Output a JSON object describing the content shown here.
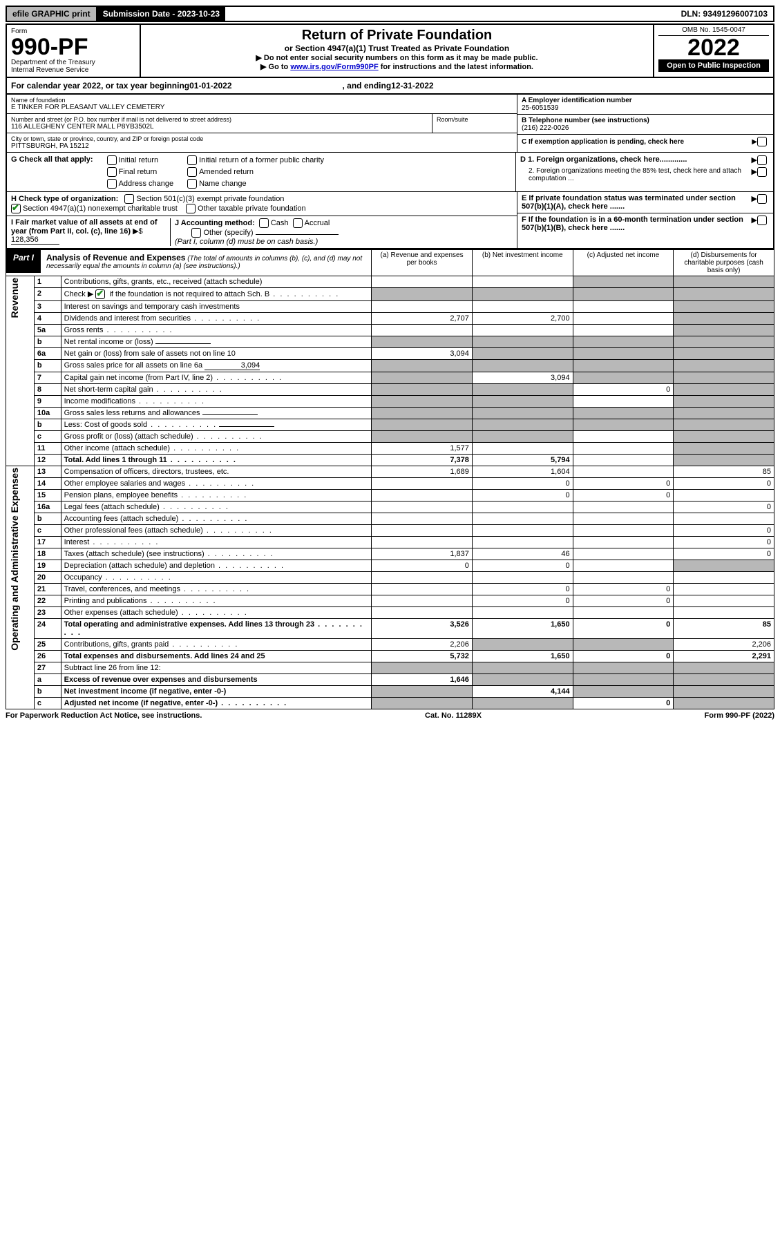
{
  "topbar": {
    "efile": "efile GRAPHIC print",
    "submission_label": "Submission Date - 2023-10-23",
    "dln": "DLN: 93491296007103"
  },
  "header": {
    "form": "Form",
    "form_number": "990-PF",
    "dept": "Department of the Treasury",
    "irs": "Internal Revenue Service",
    "title": "Return of Private Foundation",
    "subtitle": "or Section 4947(a)(1) Trust Treated as Private Foundation",
    "note1": "▶ Do not enter social security numbers on this form as it may be made public.",
    "note2_prefix": "▶ Go to ",
    "note2_link": "www.irs.gov/Form990PF",
    "note2_suffix": " for instructions and the latest information.",
    "omb": "OMB No. 1545-0047",
    "year": "2022",
    "open_public": "Open to Public Inspection"
  },
  "cal_year": {
    "prefix": "For calendar year 2022, or tax year beginning ",
    "begin": "01-01-2022",
    "mid": " , and ending ",
    "end": "12-31-2022"
  },
  "info": {
    "name_label": "Name of foundation",
    "name": "E TINKER FOR PLEASANT VALLEY CEMETERY",
    "addr_label": "Number and street (or P.O. box number if mail is not delivered to street address)",
    "addr": "116 ALLEGHENY CENTER MALL P8YB3502L",
    "room_label": "Room/suite",
    "city_label": "City or town, state or province, country, and ZIP or foreign postal code",
    "city": "PITTSBURGH, PA  15212",
    "ein_label": "A Employer identification number",
    "ein": "25-6051539",
    "phone_label": "B Telephone number (see instructions)",
    "phone": "(216) 222-0026",
    "c_label": "C If exemption application is pending, check here",
    "d1_label": "D 1. Foreign organizations, check here.............",
    "d2_label": "2. Foreign organizations meeting the 85% test, check here and attach computation ...",
    "e_label": "E If private foundation status was terminated under section 507(b)(1)(A), check here .......",
    "f_label": "F If the foundation is in a 60-month termination under section 507(b)(1)(B), check here ......."
  },
  "g": {
    "label": "G Check all that apply:",
    "opts": [
      "Initial return",
      "Initial return of a former public charity",
      "Final return",
      "Amended return",
      "Address change",
      "Name change"
    ]
  },
  "h": {
    "label": "H Check type of organization:",
    "opt1": "Section 501(c)(3) exempt private foundation",
    "opt2": "Section 4947(a)(1) nonexempt charitable trust",
    "opt3": "Other taxable private foundation"
  },
  "i": {
    "label": "I Fair market value of all assets at end of year (from Part II, col. (c), line 16)",
    "arrow": "▶$",
    "value": "128,356"
  },
  "j": {
    "label": "J Accounting method:",
    "cash": "Cash",
    "accrual": "Accrual",
    "other": "Other (specify)",
    "note": "(Part I, column (d) must be on cash basis.)"
  },
  "part1": {
    "label": "Part I",
    "title": "Analysis of Revenue and Expenses",
    "note": "(The total of amounts in columns (b), (c), and (d) may not necessarily equal the amounts in column (a) (see instructions).)",
    "col_a": "(a) Revenue and expenses per books",
    "col_b": "(b) Net investment income",
    "col_c": "(c) Adjusted net income",
    "col_d": "(d) Disbursements for charitable purposes (cash basis only)"
  },
  "sides": {
    "revenue": "Revenue",
    "expenses": "Operating and Administrative Expenses"
  },
  "rows": [
    {
      "n": "1",
      "desc": "Contributions, gifts, grants, etc., received (attach schedule)",
      "a": "",
      "b": "",
      "c": "shade",
      "d": "shade"
    },
    {
      "n": "2",
      "desc": "Check ▶ ☑ if the foundation is not required to attach Sch. B",
      "a": "shade",
      "b": "shade",
      "c": "shade",
      "d": "shade",
      "dots": true
    },
    {
      "n": "3",
      "desc": "Interest on savings and temporary cash investments",
      "a": "",
      "b": "",
      "c": "",
      "d": "shade"
    },
    {
      "n": "4",
      "desc": "Dividends and interest from securities",
      "a": "2,707",
      "b": "2,700",
      "c": "",
      "d": "shade",
      "dots": true
    },
    {
      "n": "5a",
      "desc": "Gross rents",
      "a": "",
      "b": "",
      "c": "",
      "d": "shade",
      "dots": true
    },
    {
      "n": "b",
      "desc": "Net rental income or (loss)",
      "a": "shade",
      "b": "shade",
      "c": "shade",
      "d": "shade",
      "inline": true
    },
    {
      "n": "6a",
      "desc": "Net gain or (loss) from sale of assets not on line 10",
      "a": "3,094",
      "b": "shade",
      "c": "shade",
      "d": "shade"
    },
    {
      "n": "b",
      "desc": "Gross sales price for all assets on line 6a",
      "a": "shade",
      "b": "shade",
      "c": "shade",
      "d": "shade",
      "inline": true,
      "inline_val": "3,094"
    },
    {
      "n": "7",
      "desc": "Capital gain net income (from Part IV, line 2)",
      "a": "shade",
      "b": "3,094",
      "c": "shade",
      "d": "shade",
      "dots": true
    },
    {
      "n": "8",
      "desc": "Net short-term capital gain",
      "a": "shade",
      "b": "shade",
      "c": "0",
      "d": "shade",
      "dots": true
    },
    {
      "n": "9",
      "desc": "Income modifications",
      "a": "shade",
      "b": "shade",
      "c": "",
      "d": "shade",
      "dots": true
    },
    {
      "n": "10a",
      "desc": "Gross sales less returns and allowances",
      "a": "shade",
      "b": "shade",
      "c": "shade",
      "d": "shade",
      "inline": true
    },
    {
      "n": "b",
      "desc": "Less: Cost of goods sold",
      "a": "shade",
      "b": "shade",
      "c": "shade",
      "d": "shade",
      "inline": true,
      "dots": true
    },
    {
      "n": "c",
      "desc": "Gross profit or (loss) (attach schedule)",
      "a": "shade",
      "b": "shade",
      "c": "",
      "d": "shade",
      "dots": true
    },
    {
      "n": "11",
      "desc": "Other income (attach schedule)",
      "a": "1,577",
      "b": "",
      "c": "",
      "d": "shade",
      "dots": true
    },
    {
      "n": "12",
      "desc": "Total. Add lines 1 through 11",
      "a": "7,378",
      "b": "5,794",
      "c": "",
      "d": "shade",
      "bold": true,
      "dots": true
    }
  ],
  "exp_rows": [
    {
      "n": "13",
      "desc": "Compensation of officers, directors, trustees, etc.",
      "a": "1,689",
      "b": "1,604",
      "c": "",
      "d": "85"
    },
    {
      "n": "14",
      "desc": "Other employee salaries and wages",
      "a": "",
      "b": "0",
      "c": "0",
      "d": "0",
      "dots": true
    },
    {
      "n": "15",
      "desc": "Pension plans, employee benefits",
      "a": "",
      "b": "0",
      "c": "0",
      "d": "",
      "dots": true
    },
    {
      "n": "16a",
      "desc": "Legal fees (attach schedule)",
      "a": "",
      "b": "",
      "c": "",
      "d": "0",
      "dots": true
    },
    {
      "n": "b",
      "desc": "Accounting fees (attach schedule)",
      "a": "",
      "b": "",
      "c": "",
      "d": "",
      "dots": true
    },
    {
      "n": "c",
      "desc": "Other professional fees (attach schedule)",
      "a": "",
      "b": "",
      "c": "",
      "d": "0",
      "dots": true
    },
    {
      "n": "17",
      "desc": "Interest",
      "a": "",
      "b": "",
      "c": "",
      "d": "0",
      "dots": true
    },
    {
      "n": "18",
      "desc": "Taxes (attach schedule) (see instructions)",
      "a": "1,837",
      "b": "46",
      "c": "",
      "d": "0",
      "dots": true
    },
    {
      "n": "19",
      "desc": "Depreciation (attach schedule) and depletion",
      "a": "0",
      "b": "0",
      "c": "",
      "d": "shade",
      "dots": true
    },
    {
      "n": "20",
      "desc": "Occupancy",
      "a": "",
      "b": "",
      "c": "",
      "d": "",
      "dots": true
    },
    {
      "n": "21",
      "desc": "Travel, conferences, and meetings",
      "a": "",
      "b": "0",
      "c": "0",
      "d": "",
      "dots": true
    },
    {
      "n": "22",
      "desc": "Printing and publications",
      "a": "",
      "b": "0",
      "c": "0",
      "d": "",
      "dots": true
    },
    {
      "n": "23",
      "desc": "Other expenses (attach schedule)",
      "a": "",
      "b": "",
      "c": "",
      "d": "",
      "dots": true
    },
    {
      "n": "24",
      "desc": "Total operating and administrative expenses. Add lines 13 through 23",
      "a": "3,526",
      "b": "1,650",
      "c": "0",
      "d": "85",
      "bold": true,
      "dots": true
    },
    {
      "n": "25",
      "desc": "Contributions, gifts, grants paid",
      "a": "2,206",
      "b": "shade",
      "c": "shade",
      "d": "2,206",
      "dots": true
    },
    {
      "n": "26",
      "desc": "Total expenses and disbursements. Add lines 24 and 25",
      "a": "5,732",
      "b": "1,650",
      "c": "0",
      "d": "2,291",
      "bold": true
    },
    {
      "n": "27",
      "desc": "Subtract line 26 from line 12:",
      "a": "shade",
      "b": "shade",
      "c": "shade",
      "d": "shade"
    },
    {
      "n": "a",
      "desc": "Excess of revenue over expenses and disbursements",
      "a": "1,646",
      "b": "shade",
      "c": "shade",
      "d": "shade",
      "bold": true
    },
    {
      "n": "b",
      "desc": "Net investment income (if negative, enter -0-)",
      "a": "shade",
      "b": "4,144",
      "c": "shade",
      "d": "shade",
      "bold": true
    },
    {
      "n": "c",
      "desc": "Adjusted net income (if negative, enter -0-)",
      "a": "shade",
      "b": "shade",
      "c": "0",
      "d": "shade",
      "bold": true,
      "dots": true
    }
  ],
  "footer": {
    "left": "For Paperwork Reduction Act Notice, see instructions.",
    "mid": "Cat. No. 11289X",
    "right": "Form 990-PF (2022)"
  },
  "colors": {
    "shade": "#b8b8b8",
    "link": "#0000cc",
    "check": "#1a8a1a"
  }
}
